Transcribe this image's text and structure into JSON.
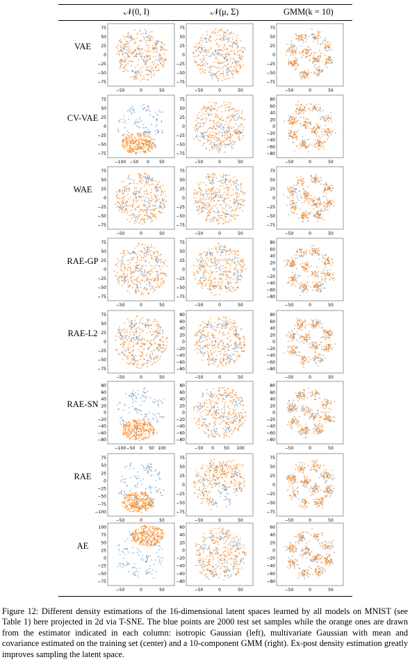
{
  "figure": {
    "columns": [
      "𝒩(0, I)",
      "𝒩(μ, Σ)",
      "GMM(k = 10)"
    ],
    "rows": [
      "VAE",
      "CV-VAE",
      "WAE",
      "RAE-GP",
      "RAE-L2",
      "RAE-SN",
      "RAE",
      "AE"
    ],
    "colors": {
      "test_points": "#3a77b3",
      "samples": "#ff7f0e"
    }
  },
  "caption": "Figure 12: Different density estimations of the 16-dimensional latent spaces learned by all models on MNIST (see Table 1) here projected in 2d via T-SNE. The blue points are 2000 test set samples while the orange ones are drawn from the estimator indicated in each column: isotropic Gaussian (left), multivariate Gaussian with mean and covariance estimated on the training set (center) and a 10-component GMM (right). Ex-post density estimation greatly improves sampling the latent space.",
  "chart_data": [
    {
      "type": "scatter",
      "row": "VAE",
      "column": "𝒩(0, I)",
      "x_ticks": [
        "−50",
        "0",
        "50"
      ],
      "y_ticks": [
        "75",
        "50",
        "25",
        "0",
        "−25",
        "−50",
        "−75"
      ]
    },
    {
      "type": "scatter",
      "row": "VAE",
      "column": "𝒩(μ, Σ)",
      "x_ticks": [
        "−50",
        "0",
        "50"
      ],
      "y_ticks": [
        "75",
        "50",
        "25",
        "0",
        "−25",
        "−50",
        "−75"
      ]
    },
    {
      "type": "scatter",
      "row": "VAE",
      "column": "GMM(k = 10)",
      "x_ticks": [
        "−50",
        "0",
        "50"
      ],
      "y_ticks": [
        "75",
        "50",
        "25",
        "0",
        "−25",
        "−50",
        "−75"
      ]
    },
    {
      "type": "scatter",
      "row": "CV-VAE",
      "column": "𝒩(0, I)",
      "x_ticks": [
        "−100",
        "−50",
        "0",
        "50"
      ],
      "y_ticks": [
        "75",
        "50",
        "25",
        "0",
        "−25",
        "−50",
        "−75"
      ]
    },
    {
      "type": "scatter",
      "row": "CV-VAE",
      "column": "𝒩(μ, Σ)",
      "x_ticks": [
        "−50",
        "0",
        "50"
      ],
      "y_ticks": [
        "75",
        "50",
        "25",
        "0",
        "−25",
        "−50",
        "−75"
      ]
    },
    {
      "type": "scatter",
      "row": "CV-VAE",
      "column": "GMM(k = 10)",
      "x_ticks": [
        "−50",
        "0",
        "50"
      ],
      "y_ticks": [
        "80",
        "60",
        "40",
        "20",
        "0",
        "−20",
        "−40",
        "−60",
        "−80"
      ]
    },
    {
      "type": "scatter",
      "row": "WAE",
      "column": "𝒩(0, I)",
      "x_ticks": [
        "−50",
        "0",
        "50"
      ],
      "y_ticks": [
        "75",
        "50",
        "25",
        "0",
        "−25",
        "−50",
        "−75"
      ]
    },
    {
      "type": "scatter",
      "row": "WAE",
      "column": "𝒩(μ, Σ)",
      "x_ticks": [
        "−50",
        "0",
        "50"
      ],
      "y_ticks": [
        "75",
        "50",
        "25",
        "0",
        "−25",
        "−50",
        "−75"
      ]
    },
    {
      "type": "scatter",
      "row": "WAE",
      "column": "GMM(k = 10)",
      "x_ticks": [
        "−50",
        "0",
        "50"
      ],
      "y_ticks": [
        "75",
        "50",
        "25",
        "0",
        "−25",
        "−50",
        "−75"
      ]
    },
    {
      "type": "scatter",
      "row": "RAE-GP",
      "column": "𝒩(0, I)",
      "x_ticks": [
        "−50",
        "0",
        "50"
      ],
      "y_ticks": [
        "75",
        "50",
        "25",
        "0",
        "−25",
        "−50",
        "−75"
      ]
    },
    {
      "type": "scatter",
      "row": "RAE-GP",
      "column": "𝒩(μ, Σ)",
      "x_ticks": [
        "−50",
        "0",
        "50"
      ],
      "y_ticks": [
        "75",
        "50",
        "25",
        "0",
        "−25",
        "−50",
        "−75"
      ]
    },
    {
      "type": "scatter",
      "row": "RAE-GP",
      "column": "GMM(k = 10)",
      "x_ticks": [
        "−50",
        "0",
        "50"
      ],
      "y_ticks": [
        "80",
        "60",
        "40",
        "20",
        "0",
        "−20",
        "−40",
        "−60",
        "−80"
      ]
    },
    {
      "type": "scatter",
      "row": "RAE-L2",
      "column": "𝒩(0, I)",
      "x_ticks": [
        "−50",
        "0",
        "50"
      ],
      "y_ticks": [
        "75",
        "50",
        "25",
        "0",
        "−25",
        "−50",
        "−75"
      ]
    },
    {
      "type": "scatter",
      "row": "RAE-L2",
      "column": "𝒩(μ, Σ)",
      "x_ticks": [
        "−50",
        "0",
        "50"
      ],
      "y_ticks": [
        "80",
        "60",
        "40",
        "20",
        "0",
        "−20",
        "−40",
        "−60",
        "−80"
      ]
    },
    {
      "type": "scatter",
      "row": "RAE-L2",
      "column": "GMM(k = 10)",
      "x_ticks": [
        "−50",
        "0",
        "50"
      ],
      "y_ticks": [
        "80",
        "60",
        "40",
        "20",
        "0",
        "−20",
        "−40",
        "−60",
        "−80"
      ]
    },
    {
      "type": "scatter",
      "row": "RAE-SN",
      "column": "𝒩(0, I)",
      "x_ticks": [
        "−100",
        "−50",
        "0",
        "50",
        "100"
      ],
      "y_ticks": [
        "80",
        "60",
        "40",
        "20",
        "0",
        "−20",
        "−40",
        "−60",
        "−80"
      ]
    },
    {
      "type": "scatter",
      "row": "RAE-SN",
      "column": "𝒩(μ, Σ)",
      "x_ticks": [
        "−50",
        "0",
        "50",
        "100"
      ],
      "y_ticks": [
        "80",
        "60",
        "40",
        "20",
        "0",
        "−20",
        "−40",
        "−60",
        "−80"
      ]
    },
    {
      "type": "scatter",
      "row": "RAE-SN",
      "column": "GMM(k = 10)",
      "x_ticks": [
        "−50",
        "0",
        "50"
      ],
      "y_ticks": [
        "80",
        "60",
        "40",
        "20",
        "0",
        "−20",
        "−40",
        "−60",
        "−80"
      ]
    },
    {
      "type": "scatter",
      "row": "RAE",
      "column": "𝒩(0, I)",
      "x_ticks": [
        "−50",
        "0",
        "50"
      ],
      "y_ticks": [
        "75",
        "50",
        "25",
        "0",
        "−25",
        "−50",
        "−75",
        "−100"
      ]
    },
    {
      "type": "scatter",
      "row": "RAE",
      "column": "𝒩(μ, Σ)",
      "x_ticks": [
        "−50",
        "0",
        "50"
      ],
      "y_ticks": [
        "75",
        "50",
        "25",
        "0",
        "−25",
        "−50",
        "−75"
      ]
    },
    {
      "type": "scatter",
      "row": "RAE",
      "column": "GMM(k = 10)",
      "x_ticks": [
        "−50",
        "0",
        "50"
      ],
      "y_ticks": [
        "75",
        "50",
        "25",
        "0",
        "−25",
        "−50",
        "−75"
      ]
    },
    {
      "type": "scatter",
      "row": "AE",
      "column": "𝒩(0, I)",
      "x_ticks": [
        "−50",
        "0",
        "50"
      ],
      "y_ticks": [
        "100",
        "75",
        "50",
        "25",
        "0",
        "−25",
        "−50",
        "−75"
      ]
    },
    {
      "type": "scatter",
      "row": "AE",
      "column": "𝒩(μ, Σ)",
      "x_ticks": [
        "−50",
        "0",
        "50"
      ],
      "y_ticks": [
        "60",
        "40",
        "20",
        "0",
        "−20",
        "−40",
        "−60",
        "−80"
      ]
    },
    {
      "type": "scatter",
      "row": "AE",
      "column": "GMM(k = 10)",
      "x_ticks": [
        "−50",
        "0",
        "50"
      ],
      "y_ticks": [
        "60",
        "40",
        "20",
        "0",
        "−20",
        "−40",
        "−60",
        "−80"
      ]
    }
  ]
}
